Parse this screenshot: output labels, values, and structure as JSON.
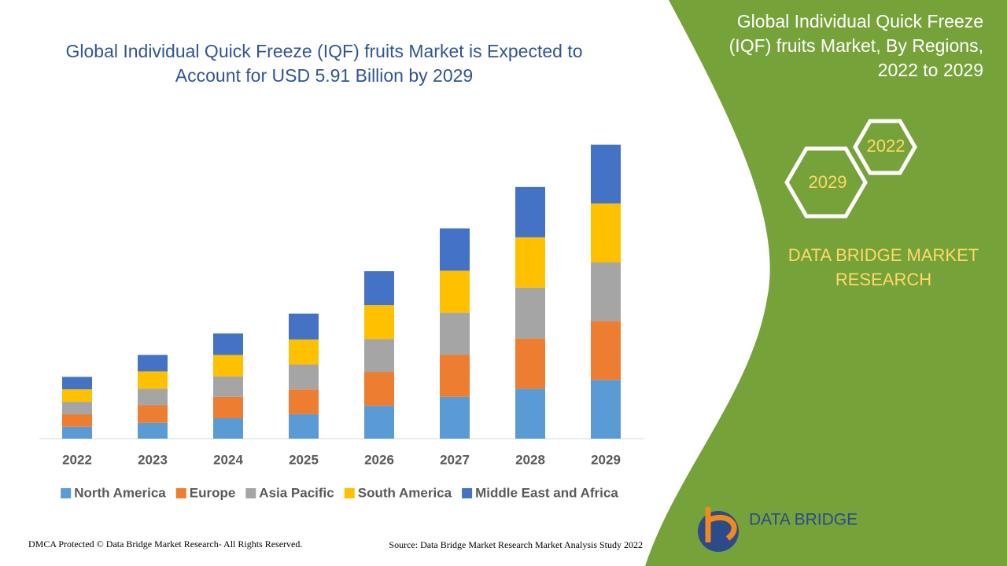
{
  "chart_data": {
    "type": "bar",
    "stacked": true,
    "title": "Global Individual Quick Freeze (IQF) fruits Market is Expected to Account for USD 5.91 Billion by 2029",
    "categories": [
      "2022",
      "2023",
      "2024",
      "2025",
      "2026",
      "2027",
      "2028",
      "2029"
    ],
    "series": [
      {
        "name": "North America",
        "color": "#5b9bd5",
        "values": [
          0.24,
          0.32,
          0.41,
          0.49,
          0.66,
          0.84,
          1.0,
          1.18
        ]
      },
      {
        "name": "Europe",
        "color": "#ed7d31",
        "values": [
          0.25,
          0.35,
          0.43,
          0.5,
          0.68,
          0.84,
          1.01,
          1.18
        ]
      },
      {
        "name": "Asia Pacific",
        "color": "#a5a5a5",
        "values": [
          0.25,
          0.33,
          0.41,
          0.5,
          0.66,
          0.85,
          1.02,
          1.18
        ]
      },
      {
        "name": "South America",
        "color": "#ffc000",
        "values": [
          0.25,
          0.35,
          0.43,
          0.5,
          0.68,
          0.84,
          1.01,
          1.18
        ]
      },
      {
        "name": "Middle East and Africa",
        "color": "#4472c4",
        "values": [
          0.25,
          0.33,
          0.43,
          0.52,
          0.68,
          0.85,
          1.01,
          1.18
        ]
      }
    ]
  },
  "side_panel": {
    "title": "Global Individual Quick Freeze (IQF) fruits Market, By Regions, 2022 to 2029",
    "hex_start": "2022",
    "hex_end": "2029",
    "brand": "DATA BRIDGE MARKET RESEARCH"
  },
  "logo": {
    "text": "DATA BRIDGE"
  },
  "footer": {
    "left": "DMCA Protected © Data Bridge Market Research- All Rights Reserved.",
    "right": "Source: Data Bridge Market Research Market Analysis Study 2022"
  }
}
